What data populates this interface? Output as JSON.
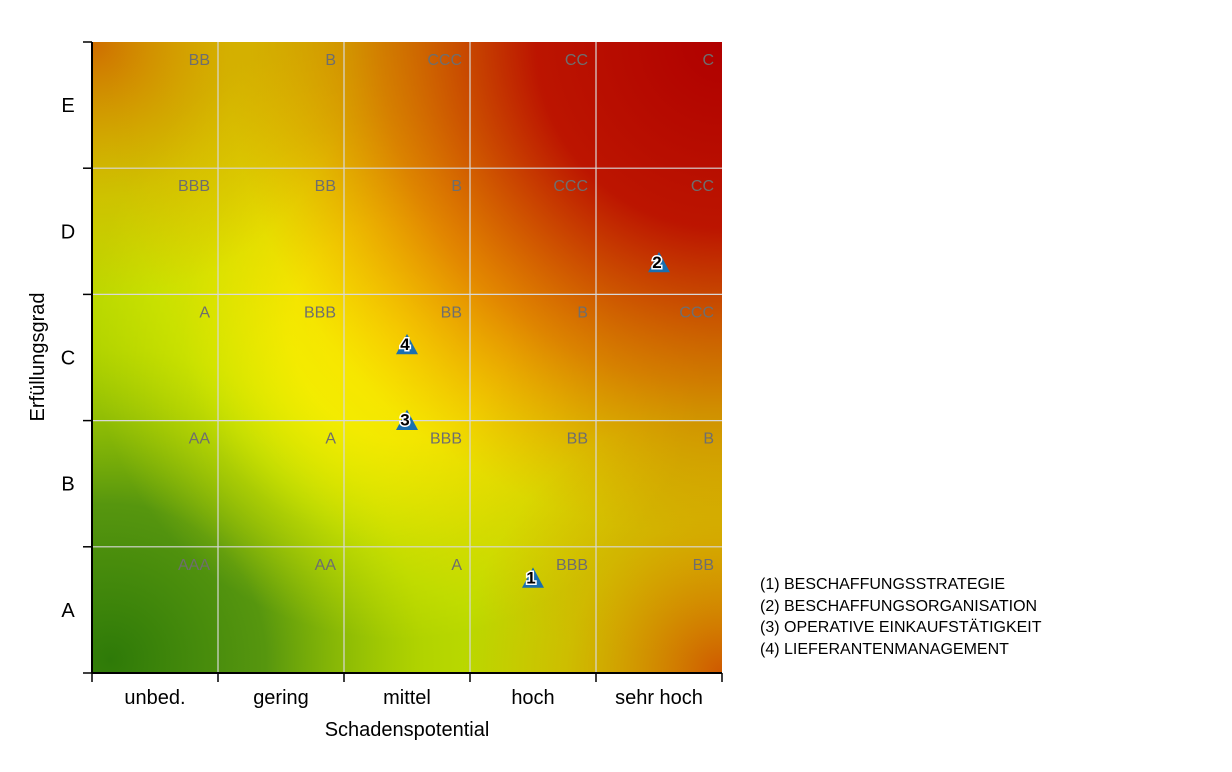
{
  "chart_data": {
    "type": "scatter",
    "title": "",
    "xlabel": "Schadenspotential",
    "ylabel": "Erfüllungsgrad",
    "x_categories": [
      "unbed.",
      "gering",
      "mittel",
      "hoch",
      "sehr hoch"
    ],
    "y_categories": [
      "A",
      "B",
      "C",
      "D",
      "E"
    ],
    "xlim": [
      0,
      5
    ],
    "ylim": [
      0,
      5
    ],
    "grid": true,
    "cell_ratings": [
      [
        "AAA",
        "AA",
        "A",
        "BBB",
        "BB"
      ],
      [
        "AA",
        "A",
        "BBB",
        "BB",
        "B"
      ],
      [
        "A",
        "BBB",
        "BB",
        "B",
        "CCC"
      ],
      [
        "BBB",
        "BB",
        "B",
        "CCC",
        "CC"
      ],
      [
        "BB",
        "B",
        "CCC",
        "CC",
        "C"
      ]
    ],
    "cell_ratings_note": "rows ordered from y category A (bottom) to E (top); columns ordered x category unbed. to sehr hoch",
    "points": [
      {
        "label": "1",
        "x": 3.5,
        "y": 0.75
      },
      {
        "label": "2",
        "x": 4.5,
        "y": 3.25
      },
      {
        "label": "3",
        "x": 2.5,
        "y": 2.0
      },
      {
        "label": "4",
        "x": 2.5,
        "y": 2.6
      }
    ],
    "marker_color": "#1a6fb0",
    "legend": {
      "placement": "bottom-right",
      "entries": [
        "(1) BESCHAFFUNGSSTRATEGIE",
        "(2) BESCHAFFUNGSORGANISATION",
        "(3) OPERATIVE EINKAUFSTÄTIGKEIT",
        "(4) LIEFERANTENMANAGEMENT"
      ]
    }
  }
}
